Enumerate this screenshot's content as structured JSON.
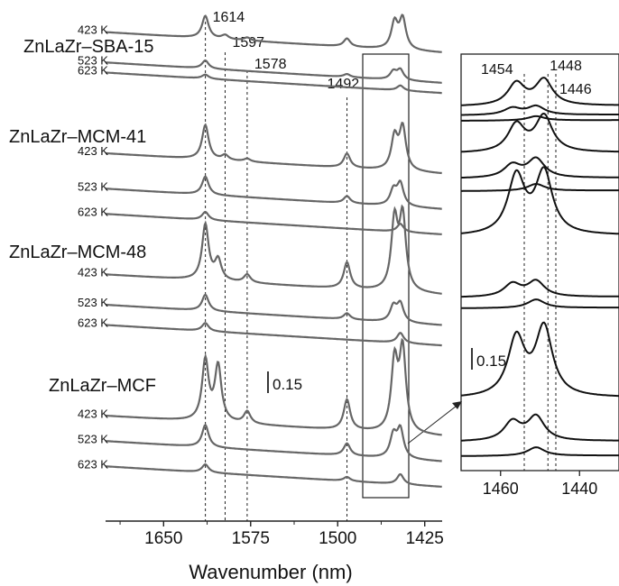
{
  "chart_data": [
    {
      "type": "line",
      "xlabel": "Wavenumber (nm)",
      "xlim": [
        1700,
        1410
      ],
      "x_ticks": [
        1650,
        1575,
        1500,
        1425
      ],
      "scale_bar": "0.15",
      "peak_labels": [
        "1614",
        "1597",
        "1578",
        "1492"
      ],
      "peak_positions": [
        1614,
        1597,
        1578,
        1492
      ],
      "groups": [
        {
          "name": "ZnLaZr–SBA-15",
          "series": [
            {
              "name": "423 K",
              "baseline": 0.86,
              "peaks": [
                [
                  1614,
                  0.22
                ],
                [
                  1597,
                  0.04
                ],
                [
                  1578,
                  0.03
                ],
                [
                  1492,
                  0.08
                ],
                [
                  1444,
                  0.3
                ],
                [
                  1451,
                  0.26
                ]
              ]
            },
            {
              "name": "523 K",
              "baseline": 0.8,
              "peaks": [
                [
                  1614,
                  0.08
                ],
                [
                  1492,
                  0.03
                ],
                [
                  1446,
                  0.1
                ],
                [
                  1452,
                  0.08
                ]
              ]
            },
            {
              "name": "623 K",
              "baseline": 0.78,
              "peaks": [
                [
                  1614,
                  0.04
                ],
                [
                  1446,
                  0.05
                ]
              ]
            }
          ]
        },
        {
          "name": "ZnLaZr–MCM-41",
          "series": [
            {
              "name": "423 K",
              "baseline": 0.62,
              "peaks": [
                [
                  1614,
                  0.34
                ],
                [
                  1597,
                  0.05
                ],
                [
                  1578,
                  0.03
                ],
                [
                  1492,
                  0.14
                ],
                [
                  1444,
                  0.42
                ],
                [
                  1451,
                  0.32
                ]
              ]
            },
            {
              "name": "523 K",
              "baseline": 0.55,
              "peaks": [
                [
                  1614,
                  0.18
                ],
                [
                  1492,
                  0.07
                ],
                [
                  1446,
                  0.22
                ],
                [
                  1452,
                  0.15
                ]
              ]
            },
            {
              "name": "623 K",
              "baseline": 0.5,
              "peaks": [
                [
                  1614,
                  0.08
                ],
                [
                  1446,
                  0.08
                ]
              ]
            }
          ]
        },
        {
          "name": "ZnLaZr–MCM-48",
          "series": [
            {
              "name": "423 K",
              "baseline": 0.38,
              "peaks": [
                [
                  1614,
                  0.55
                ],
                [
                  1603,
                  0.2
                ],
                [
                  1578,
                  0.08
                ],
                [
                  1492,
                  0.26
                ],
                [
                  1444,
                  0.72
                ],
                [
                  1451,
                  0.68
                ]
              ]
            },
            {
              "name": "523 K",
              "baseline": 0.32,
              "peaks": [
                [
                  1614,
                  0.16
                ],
                [
                  1492,
                  0.06
                ],
                [
                  1446,
                  0.18
                ],
                [
                  1452,
                  0.15
                ]
              ]
            },
            {
              "name": "623 K",
              "baseline": 0.28,
              "peaks": [
                [
                  1614,
                  0.08
                ],
                [
                  1446,
                  0.1
                ]
              ]
            }
          ]
        },
        {
          "name": "ZnLaZr–MCF",
          "series": [
            {
              "name": "423 K",
              "baseline": 0.1,
              "peaks": [
                [
                  1614,
                  0.6
                ],
                [
                  1603,
                  0.55
                ],
                [
                  1578,
                  0.12
                ],
                [
                  1492,
                  0.3
                ],
                [
                  1444,
                  0.8
                ],
                [
                  1451,
                  0.68
                ]
              ]
            },
            {
              "name": "523 K",
              "baseline": 0.05,
              "peaks": [
                [
                  1614,
                  0.22
                ],
                [
                  1492,
                  0.12
                ],
                [
                  1446,
                  0.28
                ],
                [
                  1452,
                  0.22
                ]
              ]
            },
            {
              "name": "623 K",
              "baseline": 0.0,
              "peaks": [
                [
                  1614,
                  0.08
                ],
                [
                  1492,
                  0.04
                ],
                [
                  1446,
                  0.1
                ]
              ]
            }
          ]
        }
      ]
    },
    {
      "type": "line",
      "xlim": [
        1470,
        1430
      ],
      "x_ticks": [
        1460,
        1440
      ],
      "scale_bar": "0.15",
      "peak_labels": [
        "1454",
        "1448",
        "1446"
      ],
      "peak_positions": [
        1454,
        1448,
        1446
      ]
    }
  ]
}
